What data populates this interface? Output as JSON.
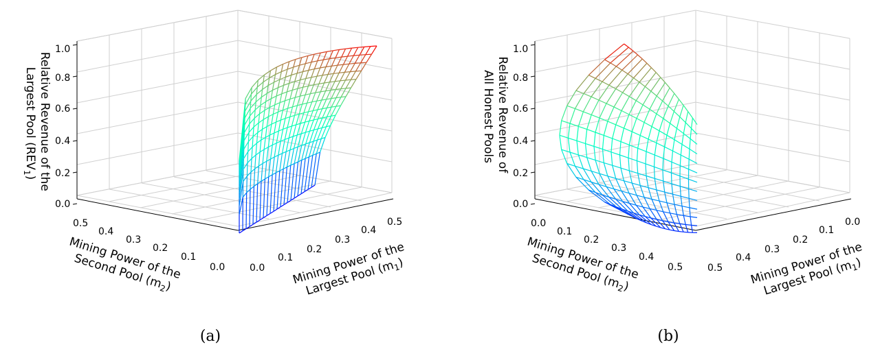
{
  "chart_data": [
    {
      "type": "surface3d",
      "caption": "(a)",
      "zlabel_lines": [
        "Relative Revenue of the",
        "Largest Pool (REV",
        "1",
        ")"
      ],
      "xlabel_lines": [
        "Mining Power of the",
        "Second Pool (m",
        "2",
        ")"
      ],
      "ylabel_lines": [
        "Mining Power of the",
        "Largest Pool (m",
        "1",
        ")"
      ],
      "x_ticks": [
        "0.5",
        "0.4",
        "0.3",
        "0.2",
        "0.1",
        "0.0"
      ],
      "y_ticks": [
        "0.0",
        "0.1",
        "0.2",
        "0.3",
        "0.4",
        "0.5"
      ],
      "z_ticks": [
        "0.0",
        "0.2",
        "0.4",
        "0.6",
        "0.8",
        "1.0"
      ],
      "zlim": [
        0,
        1
      ],
      "colormap": "rainbow",
      "domain": "m1 in [0, 0.5], m2 in [0, m1]"
    },
    {
      "type": "surface3d",
      "caption": "(b)",
      "zlabel_lines": [
        "Relative Revenue of",
        "All Honest Pools"
      ],
      "xlabel_lines": [
        "Mining Power of the",
        "Second Pool (m",
        "2",
        ")"
      ],
      "ylabel_lines": [
        "Mining Power of the",
        "Largest Pool (m",
        "1",
        ")"
      ],
      "x_ticks": [
        "0.0",
        "0.1",
        "0.2",
        "0.3",
        "0.4",
        "0.5"
      ],
      "y_ticks": [
        "0.5",
        "0.4",
        "0.3",
        "0.2",
        "0.1",
        "0.0"
      ],
      "z_ticks": [
        "0.0",
        "0.2",
        "0.4",
        "0.6",
        "0.8",
        "1.0"
      ],
      "zlim": [
        0,
        1
      ],
      "colormap": "rainbow",
      "domain": "m1 in [0, 0.5], m2 in [0, m1]"
    }
  ]
}
